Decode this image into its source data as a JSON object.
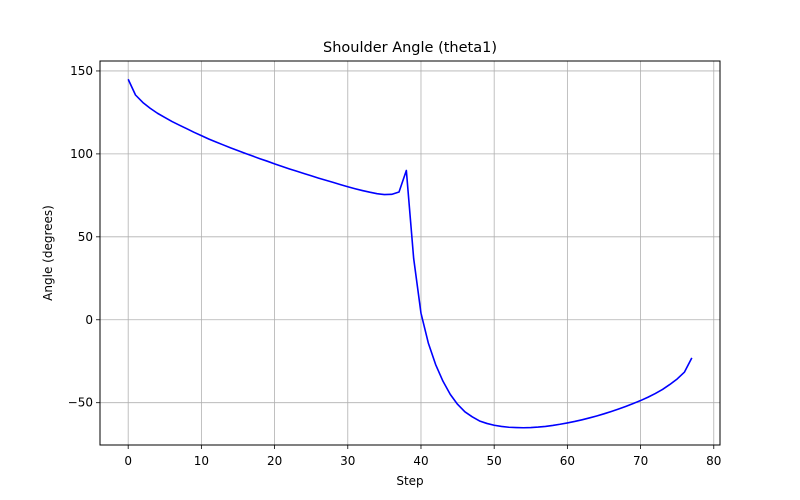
{
  "chart_data": {
    "type": "line",
    "title": "Shoulder Angle (theta1)",
    "xlabel": "Step",
    "ylabel": "Angle (degrees)",
    "xlim": [
      -3.85,
      80.85
    ],
    "ylim": [
      -75.5,
      156
    ],
    "xticks": [
      0,
      10,
      20,
      30,
      40,
      50,
      60,
      70,
      80
    ],
    "yticks": [
      -50,
      0,
      50,
      100,
      150
    ],
    "ytick_labels": [
      "−50",
      "0",
      "50",
      "100",
      "150"
    ],
    "grid": true,
    "line_color": "#0000ff",
    "series": [
      {
        "name": "",
        "x": [
          0,
          1,
          2,
          3,
          4,
          5,
          6,
          7,
          8,
          9,
          10,
          11,
          12,
          13,
          14,
          15,
          16,
          17,
          18,
          19,
          20,
          21,
          22,
          23,
          24,
          25,
          26,
          27,
          28,
          29,
          30,
          31,
          32,
          33,
          34,
          35,
          36,
          37,
          38,
          39,
          40,
          41,
          42,
          43,
          44,
          45,
          46,
          47,
          48,
          49,
          50,
          51,
          52,
          53,
          54,
          55,
          56,
          57,
          58,
          59,
          60,
          61,
          62,
          63,
          64,
          65,
          66,
          67,
          68,
          69,
          70,
          71,
          72,
          73,
          74,
          75,
          76,
          77
        ],
        "values": [
          145,
          135.5,
          131,
          127.5,
          124.5,
          122,
          119.5,
          117.3,
          115.2,
          113,
          111,
          109,
          107.2,
          105.4,
          103.6,
          102,
          100.3,
          98.7,
          97.1,
          95.6,
          94,
          92.5,
          91,
          89.6,
          88.2,
          86.8,
          85.4,
          84.1,
          82.8,
          81.5,
          80.2,
          79,
          77.9,
          76.9,
          76,
          75.5,
          75.6,
          77,
          90,
          37,
          4,
          -14,
          -27,
          -37,
          -45,
          -51,
          -55.5,
          -58.5,
          -61,
          -62.5,
          -63.6,
          -64.3,
          -64.8,
          -65,
          -65.1,
          -65,
          -64.7,
          -64.3,
          -63.7,
          -63,
          -62.2,
          -61.3,
          -60.3,
          -59.2,
          -58,
          -56.7,
          -55.3,
          -53.8,
          -52.2,
          -50.5,
          -48.7,
          -46.7,
          -44.5,
          -42,
          -39,
          -35.7,
          -31.5,
          -23
        ]
      }
    ]
  }
}
